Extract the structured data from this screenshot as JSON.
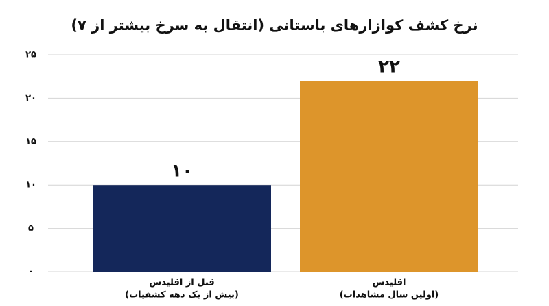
{
  "chart_data": {
    "type": "bar",
    "title": "نرخ کشف کوازارهای باستانی (انتقال به سرخ بیشتر از ۷)",
    "categories": [
      [
        "قبل از اقلیدس",
        "(بیش از یک دهه کشفیات)"
      ],
      [
        "اقلیدس",
        "(اولین سال مشاهدات)"
      ]
    ],
    "values": [
      10,
      22
    ],
    "value_labels": [
      "۱۰",
      "۲۲"
    ],
    "colors": [
      "#14275a",
      "#dd952b"
    ],
    "ylim": [
      0,
      25
    ],
    "yticks": [
      {
        "value": 0,
        "label": "۰"
      },
      {
        "value": 5,
        "label": "۵"
      },
      {
        "value": 10,
        "label": "۱۰"
      },
      {
        "value": 15,
        "label": "۱۵"
      },
      {
        "value": 20,
        "label": "۲۰"
      },
      {
        "value": 25,
        "label": "۲۵"
      }
    ],
    "grid": true
  }
}
